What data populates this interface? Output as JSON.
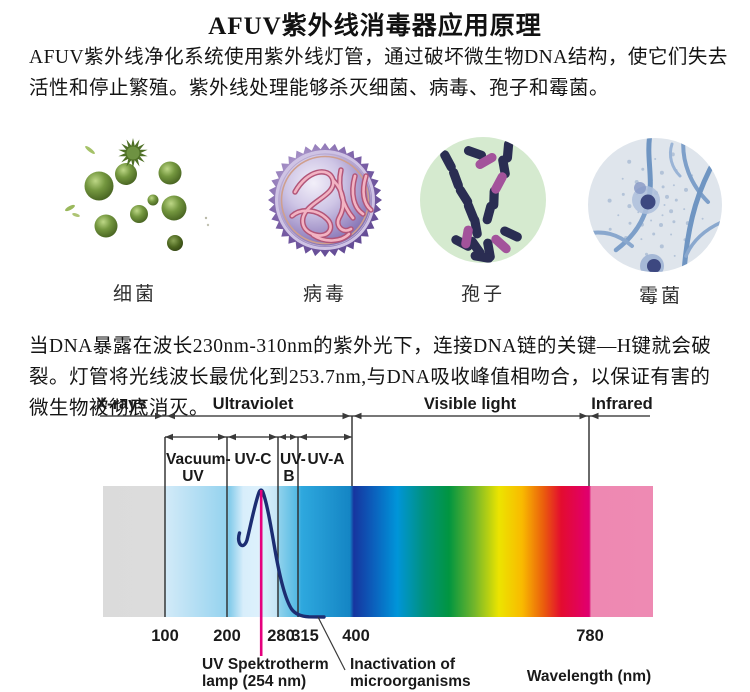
{
  "title": "AFUV紫外线消毒器应用原理",
  "intro": "AFUV紫外线净化系统使用紫外线灯管，通过破坏微生物DNA结构，使它们失去活性和停止繁殖。紫外线处理能够杀灭细菌、病毒、孢子和霉菌。",
  "dna_text": "当DNA暴露在波长230nm-310nm的紫外光下，连接DNA链的关键—H键就会破裂。灯管将光线波长最优化到253.7nm,与DNA吸收峰值相吻合，以保证有害的微生物被彻底消灭。",
  "microbes": [
    {
      "label": "细菌"
    },
    {
      "label": "病毒"
    },
    {
      "label": "孢子"
    },
    {
      "label": "霉菌"
    }
  ],
  "spectrum": {
    "regions": [
      {
        "label": "X-rays",
        "range_nm": [
          null,
          100
        ]
      },
      {
        "label": "Ultraviolet",
        "range_nm": [
          100,
          400
        ]
      },
      {
        "label": "Visible light",
        "range_nm": [
          400,
          780
        ]
      },
      {
        "label": "Infrared",
        "range_nm": [
          780,
          null
        ]
      }
    ],
    "subbands": [
      {
        "name": "Vacuum-UV",
        "line1": "Vacuum-",
        "line2": "UV",
        "range_nm": [
          100,
          200
        ]
      },
      {
        "name": "UV-C",
        "line1": "UV-C",
        "range_nm": [
          200,
          280
        ]
      },
      {
        "name": "UV-B",
        "line1": "UV-",
        "line2": "B",
        "range_nm": [
          280,
          315
        ]
      },
      {
        "name": "UV-A",
        "line1": "UV-A",
        "range_nm": [
          315,
          400
        ]
      }
    ],
    "ticks": [
      "100",
      "200",
      "280",
      "315",
      "400",
      "780"
    ],
    "ticks_nm": [
      100,
      200,
      280,
      315,
      400,
      780
    ],
    "lamp_nm": 254,
    "lamp_label_line1": "UV Spektrotherm",
    "lamp_label_line2": "lamp (254 nm)",
    "inactivation_line1": "Inactivation of",
    "inactivation_line2": "microorganisms",
    "axis_label": "Wavelength (nm)",
    "colors": {
      "lamp_line": "#e5007e",
      "curve": "#1c2d72"
    }
  }
}
